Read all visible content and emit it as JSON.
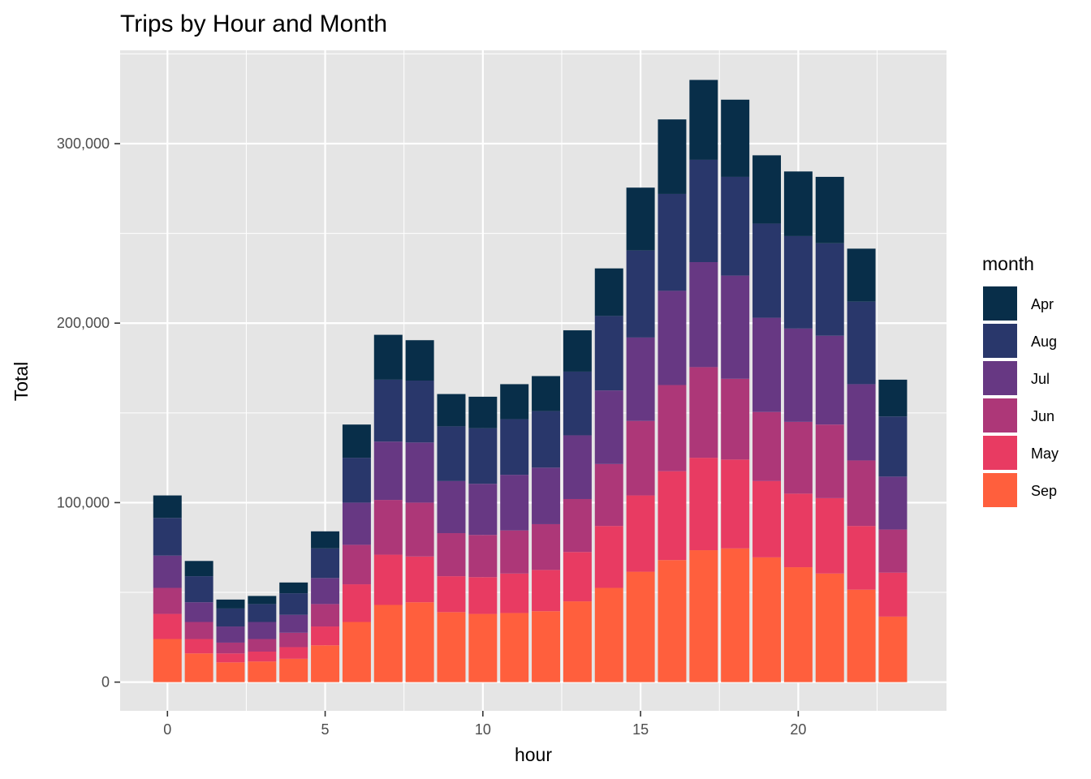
{
  "chart_data": {
    "type": "bar",
    "stacked": true,
    "title": "Trips by Hour and Month",
    "xlabel": "hour",
    "ylabel": "Total",
    "x": [
      0,
      1,
      2,
      3,
      4,
      5,
      6,
      7,
      8,
      9,
      10,
      11,
      12,
      13,
      14,
      15,
      16,
      17,
      18,
      19,
      20,
      21,
      22,
      23
    ],
    "x_ticks": [
      0,
      5,
      10,
      15,
      20
    ],
    "x_tick_labels": [
      "0",
      "5",
      "10",
      "15",
      "20"
    ],
    "xlim": [
      -1.5,
      24.7
    ],
    "y_ticks": [
      0,
      100000,
      200000,
      300000
    ],
    "y_tick_labels": [
      "0",
      "100,000",
      "200,000",
      "300,000"
    ],
    "ylim": [
      -16000,
      352000
    ],
    "grid": true,
    "legend_title": "month",
    "legend_position": "right",
    "legend_order": [
      "Apr",
      "Aug",
      "Jul",
      "Jun",
      "May",
      "Sep"
    ],
    "series": [
      {
        "name": "Sep",
        "color": "#ff5f3d",
        "values": [
          24000,
          16000,
          11000,
          11500,
          13000,
          20500,
          33500,
          43000,
          44500,
          39000,
          38000,
          38500,
          39500,
          45000,
          52500,
          61500,
          68000,
          73500,
          74500,
          69500,
          64000,
          60500,
          51500,
          36500
        ]
      },
      {
        "name": "May",
        "color": "#e83b62",
        "values": [
          14000,
          8000,
          5000,
          5500,
          6500,
          10500,
          21000,
          28000,
          25500,
          20000,
          20500,
          22000,
          23000,
          27500,
          34500,
          42500,
          49500,
          51500,
          49500,
          42500,
          41000,
          42000,
          35500,
          24500
        ]
      },
      {
        "name": "Jun",
        "color": "#ad3778",
        "values": [
          14500,
          9500,
          6000,
          7000,
          8000,
          12500,
          22000,
          30500,
          30000,
          24000,
          23500,
          24000,
          25500,
          29500,
          34500,
          41500,
          48000,
          50500,
          45000,
          38500,
          40000,
          41000,
          36500,
          24000
        ]
      },
      {
        "name": "Jul",
        "color": "#673883",
        "values": [
          18000,
          11000,
          9000,
          9500,
          10000,
          14500,
          23500,
          32500,
          33500,
          29000,
          28500,
          31000,
          31500,
          35500,
          41000,
          46500,
          52500,
          58500,
          57500,
          52500,
          52000,
          49500,
          42500,
          29500
        ]
      },
      {
        "name": "Aug",
        "color": "#29376b",
        "values": [
          21000,
          14500,
          10000,
          10000,
          12000,
          16500,
          25000,
          34500,
          34500,
          30500,
          31000,
          31000,
          31500,
          35500,
          41500,
          48500,
          54000,
          57000,
          55000,
          52500,
          51500,
          51500,
          46000,
          33500
        ]
      },
      {
        "name": "Apr",
        "color": "#082e49",
        "values": [
          12500,
          8500,
          5000,
          4500,
          6000,
          9500,
          18500,
          25000,
          22500,
          18000,
          17500,
          19500,
          19500,
          23000,
          26500,
          35000,
          41500,
          44500,
          43000,
          38000,
          36000,
          37000,
          29500,
          20500
        ]
      }
    ]
  }
}
